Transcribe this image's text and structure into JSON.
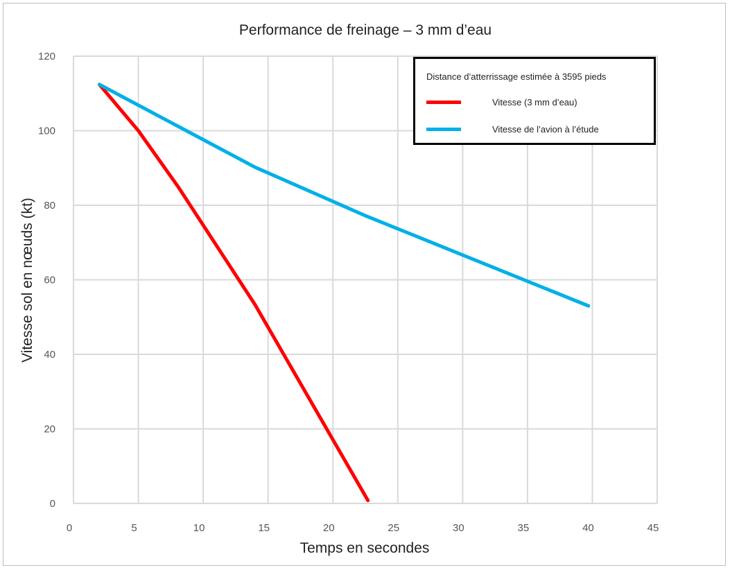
{
  "chart_data": {
    "type": "line",
    "title": "Performance de freinage – 3 mm d’eau",
    "xlabel": "Temps en secondes",
    "ylabel": "Vitesse sol en nœuds (kt)",
    "xlim": [
      0,
      45
    ],
    "ylim": [
      0,
      120
    ],
    "xticks": [
      0,
      5,
      10,
      15,
      20,
      25,
      30,
      35,
      40,
      45
    ],
    "yticks": [
      0,
      20,
      40,
      60,
      80,
      100,
      120
    ],
    "grid": true,
    "legend_position": "top-right",
    "legend_title": "Distance d’atterrissage estimée à 3595 pieds",
    "series": [
      {
        "name": "Vitesse (3 mm d’eau)",
        "color": "#ff0000",
        "x": [
          2.0,
          5.0,
          8.1,
          14.0,
          22.7
        ],
        "y": [
          112.4,
          100,
          84.8,
          53.3,
          0.8
        ]
      },
      {
        "name": "Vitesse de l’avion à l’étude",
        "color": "#00b0e8",
        "x": [
          2.0,
          14.0,
          22.5,
          39.7
        ],
        "y": [
          112.4,
          90.2,
          77.2,
          53.0
        ]
      }
    ]
  }
}
